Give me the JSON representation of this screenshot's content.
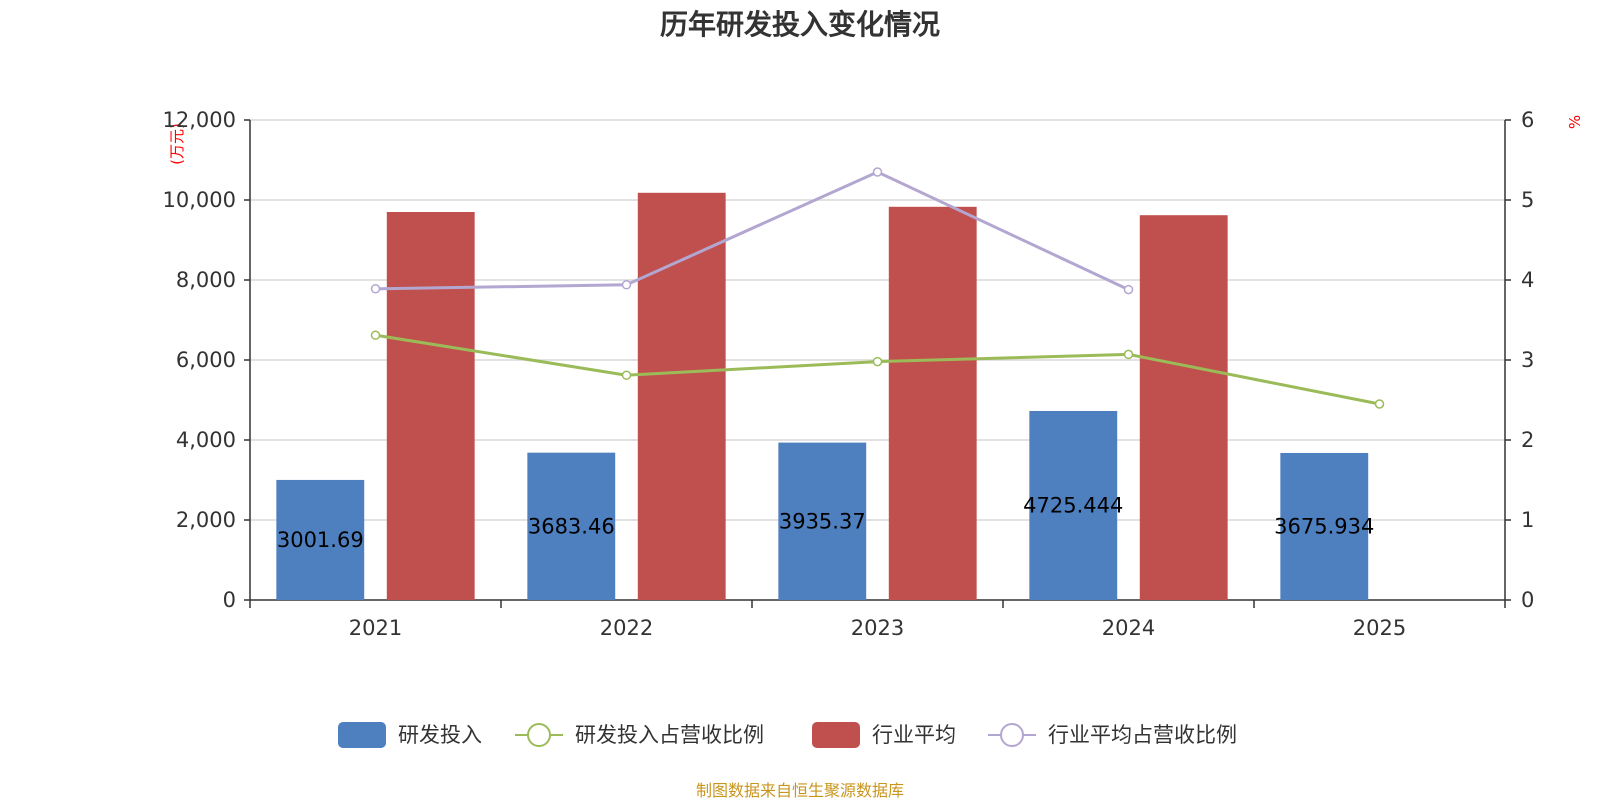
{
  "chart_data": {
    "type": "bar",
    "title": "历年研发投入变化情况",
    "categories": [
      "2021",
      "2022",
      "2023",
      "2024",
      "2025"
    ],
    "y_left": {
      "unit": "(万元)",
      "ylim": [
        0,
        12000
      ],
      "ticks": [
        "0",
        "2,000",
        "4,000",
        "6,000",
        "8,000",
        "10,000",
        "12,000"
      ]
    },
    "y_right": {
      "unit": "%",
      "ylim": [
        0,
        6
      ],
      "ticks": [
        "0",
        "1",
        "2",
        "3",
        "4",
        "5",
        "6"
      ]
    },
    "series": [
      {
        "name": "研发投入",
        "kind": "bar",
        "axis": "left",
        "color": "#4e7fbf",
        "values": [
          3001.69,
          3683.46,
          3935.37,
          4725.444,
          3675.934
        ],
        "labels": [
          "3001.69",
          "3683.46",
          "3935.37",
          "4725.444",
          "3675.934"
        ]
      },
      {
        "name": "研发投入占营收比例",
        "kind": "line",
        "axis": "right",
        "color": "#9bbb59",
        "values": [
          3.31,
          2.81,
          2.98,
          3.07,
          2.45
        ]
      },
      {
        "name": "行业平均",
        "kind": "bar",
        "axis": "left",
        "color": "#c0504d",
        "values": [
          9700,
          10180,
          9830,
          9620,
          null
        ]
      },
      {
        "name": "行业平均占营收比例",
        "kind": "line",
        "axis": "right",
        "color": "#b3a6d1",
        "values": [
          3.89,
          3.94,
          5.35,
          3.88,
          null
        ]
      }
    ],
    "grid": true,
    "legend": "bottom"
  },
  "footer": {
    "source": "制图数据来自恒生聚源数据库"
  }
}
